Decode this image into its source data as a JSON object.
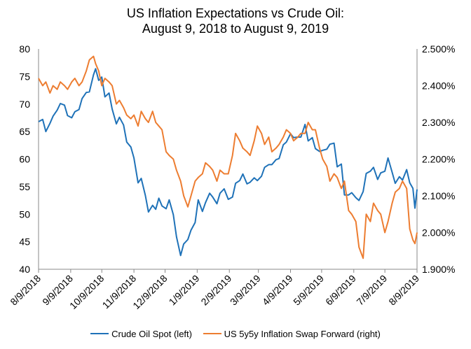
{
  "chart_data": {
    "type": "line",
    "title_line1": "US Inflation Expectations vs Crude Oil:",
    "title_line2": "August 9, 2018 to August 9, 2019",
    "x_ticks": [
      "8/9/2018",
      "9/9/2018",
      "10/9/2018",
      "11/9/2018",
      "12/9/2018",
      "1/9/2019",
      "2/9/2019",
      "3/9/2019",
      "4/9/2019",
      "5/9/2019",
      "6/9/2019",
      "7/9/2019",
      "8/9/2019"
    ],
    "x_range": [
      "2018-08-09",
      "2019-08-09"
    ],
    "y_left": {
      "ylim": [
        40,
        80
      ],
      "ticks": [
        "40",
        "45",
        "50",
        "55",
        "60",
        "65",
        "70",
        "75",
        "80"
      ]
    },
    "y_right": {
      "ylim": [
        1.9,
        2.5
      ],
      "ticks": [
        "1.900%",
        "2.000%",
        "2.100%",
        "2.200%",
        "2.300%",
        "2.400%",
        "2.500%"
      ]
    },
    "grid": false,
    "legend_position": "bottom",
    "series": [
      {
        "name": "Crude Oil Spot (left)",
        "axis": "left",
        "color": "#1f72b8",
        "points": [
          [
            "2018-08-09",
            66.8
          ],
          [
            "2018-08-13",
            67.2
          ],
          [
            "2018-08-16",
            65.0
          ],
          [
            "2018-08-20",
            66.5
          ],
          [
            "2018-08-23",
            67.8
          ],
          [
            "2018-08-27",
            68.9
          ],
          [
            "2018-08-30",
            70.1
          ],
          [
            "2018-09-03",
            69.8
          ],
          [
            "2018-09-06",
            67.9
          ],
          [
            "2018-09-10",
            67.5
          ],
          [
            "2018-09-13",
            68.6
          ],
          [
            "2018-09-17",
            69.0
          ],
          [
            "2018-09-20",
            71.0
          ],
          [
            "2018-09-24",
            72.1
          ],
          [
            "2018-09-27",
            72.2
          ],
          [
            "2018-10-01",
            75.3
          ],
          [
            "2018-10-03",
            76.4
          ],
          [
            "2018-10-06",
            74.3
          ],
          [
            "2018-10-09",
            74.9
          ],
          [
            "2018-10-12",
            71.3
          ],
          [
            "2018-10-16",
            72.0
          ],
          [
            "2018-10-19",
            69.1
          ],
          [
            "2018-10-23",
            66.4
          ],
          [
            "2018-10-26",
            67.6
          ],
          [
            "2018-10-30",
            66.2
          ],
          [
            "2018-11-02",
            63.1
          ],
          [
            "2018-11-06",
            62.2
          ],
          [
            "2018-11-09",
            60.2
          ],
          [
            "2018-11-13",
            55.7
          ],
          [
            "2018-11-16",
            56.5
          ],
          [
            "2018-11-20",
            53.4
          ],
          [
            "2018-11-23",
            50.4
          ],
          [
            "2018-11-27",
            51.6
          ],
          [
            "2018-11-30",
            50.9
          ],
          [
            "2018-12-03",
            52.9
          ],
          [
            "2018-12-06",
            51.5
          ],
          [
            "2018-12-10",
            51.0
          ],
          [
            "2018-12-13",
            52.6
          ],
          [
            "2018-12-17",
            49.9
          ],
          [
            "2018-12-20",
            45.9
          ],
          [
            "2018-12-24",
            42.5
          ],
          [
            "2018-12-27",
            44.6
          ],
          [
            "2018-12-31",
            45.4
          ],
          [
            "2019-01-03",
            47.1
          ],
          [
            "2019-01-07",
            48.5
          ],
          [
            "2019-01-10",
            52.6
          ],
          [
            "2019-01-14",
            50.5
          ],
          [
            "2019-01-17",
            52.1
          ],
          [
            "2019-01-21",
            53.8
          ],
          [
            "2019-01-24",
            53.1
          ],
          [
            "2019-01-28",
            51.9
          ],
          [
            "2019-01-31",
            53.8
          ],
          [
            "2019-02-04",
            54.6
          ],
          [
            "2019-02-08",
            52.7
          ],
          [
            "2019-02-12",
            53.1
          ],
          [
            "2019-02-15",
            55.6
          ],
          [
            "2019-02-19",
            56.1
          ],
          [
            "2019-02-22",
            57.3
          ],
          [
            "2019-02-26",
            55.5
          ],
          [
            "2019-03-01",
            55.8
          ],
          [
            "2019-03-05",
            56.6
          ],
          [
            "2019-03-08",
            56.1
          ],
          [
            "2019-03-12",
            56.9
          ],
          [
            "2019-03-15",
            58.5
          ],
          [
            "2019-03-19",
            59.0
          ],
          [
            "2019-03-22",
            59.0
          ],
          [
            "2019-03-26",
            59.9
          ],
          [
            "2019-03-29",
            60.1
          ],
          [
            "2019-04-02",
            62.6
          ],
          [
            "2019-04-05",
            63.1
          ],
          [
            "2019-04-09",
            64.6
          ],
          [
            "2019-04-12",
            63.9
          ],
          [
            "2019-04-16",
            64.0
          ],
          [
            "2019-04-19",
            64.0
          ],
          [
            "2019-04-23",
            66.3
          ],
          [
            "2019-04-26",
            63.3
          ],
          [
            "2019-04-30",
            63.9
          ],
          [
            "2019-05-03",
            61.9
          ],
          [
            "2019-05-07",
            61.4
          ],
          [
            "2019-05-10",
            61.6
          ],
          [
            "2019-05-14",
            61.8
          ],
          [
            "2019-05-17",
            62.7
          ],
          [
            "2019-05-21",
            62.9
          ],
          [
            "2019-05-24",
            58.6
          ],
          [
            "2019-05-28",
            59.1
          ],
          [
            "2019-05-31",
            53.5
          ],
          [
            "2019-06-04",
            53.5
          ],
          [
            "2019-06-07",
            53.9
          ],
          [
            "2019-06-11",
            53.0
          ],
          [
            "2019-06-14",
            52.5
          ],
          [
            "2019-06-18",
            54.1
          ],
          [
            "2019-06-21",
            57.4
          ],
          [
            "2019-06-25",
            57.8
          ],
          [
            "2019-06-28",
            58.5
          ],
          [
            "2019-07-02",
            56.3
          ],
          [
            "2019-07-05",
            57.5
          ],
          [
            "2019-07-09",
            57.8
          ],
          [
            "2019-07-12",
            60.2
          ],
          [
            "2019-07-16",
            57.6
          ],
          [
            "2019-07-19",
            55.6
          ],
          [
            "2019-07-23",
            56.8
          ],
          [
            "2019-07-26",
            56.2
          ],
          [
            "2019-07-30",
            58.1
          ],
          [
            "2019-08-02",
            55.7
          ],
          [
            "2019-08-05",
            54.7
          ],
          [
            "2019-08-07",
            51.1
          ],
          [
            "2019-08-09",
            54.5
          ]
        ]
      },
      {
        "name": "US 5y5y Inflation Swap Forward (right)",
        "axis": "right",
        "color": "#ed7d31",
        "points": [
          [
            "2018-08-09",
            2.42
          ],
          [
            "2018-08-13",
            2.4
          ],
          [
            "2018-08-16",
            2.41
          ],
          [
            "2018-08-20",
            2.38
          ],
          [
            "2018-08-23",
            2.4
          ],
          [
            "2018-08-27",
            2.39
          ],
          [
            "2018-08-30",
            2.41
          ],
          [
            "2018-09-03",
            2.4
          ],
          [
            "2018-09-06",
            2.39
          ],
          [
            "2018-09-10",
            2.41
          ],
          [
            "2018-09-13",
            2.42
          ],
          [
            "2018-09-17",
            2.4
          ],
          [
            "2018-09-20",
            2.41
          ],
          [
            "2018-09-24",
            2.44
          ],
          [
            "2018-09-27",
            2.47
          ],
          [
            "2018-10-01",
            2.48
          ],
          [
            "2018-10-03",
            2.46
          ],
          [
            "2018-10-06",
            2.44
          ],
          [
            "2018-10-09",
            2.4
          ],
          [
            "2018-10-12",
            2.42
          ],
          [
            "2018-10-16",
            2.41
          ],
          [
            "2018-10-19",
            2.4
          ],
          [
            "2018-10-23",
            2.35
          ],
          [
            "2018-10-26",
            2.36
          ],
          [
            "2018-10-30",
            2.34
          ],
          [
            "2018-11-02",
            2.32
          ],
          [
            "2018-11-06",
            2.31
          ],
          [
            "2018-11-09",
            2.32
          ],
          [
            "2018-11-13",
            2.29
          ],
          [
            "2018-11-16",
            2.33
          ],
          [
            "2018-11-20",
            2.31
          ],
          [
            "2018-11-23",
            2.3
          ],
          [
            "2018-11-27",
            2.33
          ],
          [
            "2018-11-30",
            2.3
          ],
          [
            "2018-12-03",
            2.29
          ],
          [
            "2018-12-06",
            2.28
          ],
          [
            "2018-12-10",
            2.22
          ],
          [
            "2018-12-13",
            2.21
          ],
          [
            "2018-12-17",
            2.2
          ],
          [
            "2018-12-20",
            2.17
          ],
          [
            "2018-12-24",
            2.14
          ],
          [
            "2018-12-27",
            2.1
          ],
          [
            "2018-12-31",
            2.07
          ],
          [
            "2019-01-03",
            2.1
          ],
          [
            "2019-01-07",
            2.14
          ],
          [
            "2019-01-10",
            2.15
          ],
          [
            "2019-01-14",
            2.16
          ],
          [
            "2019-01-17",
            2.19
          ],
          [
            "2019-01-21",
            2.18
          ],
          [
            "2019-01-24",
            2.17
          ],
          [
            "2019-01-28",
            2.14
          ],
          [
            "2019-01-31",
            2.17
          ],
          [
            "2019-02-04",
            2.16
          ],
          [
            "2019-02-08",
            2.16
          ],
          [
            "2019-02-12",
            2.21
          ],
          [
            "2019-02-15",
            2.27
          ],
          [
            "2019-02-19",
            2.25
          ],
          [
            "2019-02-22",
            2.23
          ],
          [
            "2019-02-26",
            2.22
          ],
          [
            "2019-03-01",
            2.21
          ],
          [
            "2019-03-05",
            2.25
          ],
          [
            "2019-03-08",
            2.29
          ],
          [
            "2019-03-12",
            2.27
          ],
          [
            "2019-03-15",
            2.24
          ],
          [
            "2019-03-19",
            2.26
          ],
          [
            "2019-03-22",
            2.22
          ],
          [
            "2019-03-26",
            2.23
          ],
          [
            "2019-03-29",
            2.24
          ],
          [
            "2019-04-02",
            2.26
          ],
          [
            "2019-04-05",
            2.28
          ],
          [
            "2019-04-09",
            2.27
          ],
          [
            "2019-04-12",
            2.25
          ],
          [
            "2019-04-16",
            2.26
          ],
          [
            "2019-04-19",
            2.27
          ],
          [
            "2019-04-23",
            2.27
          ],
          [
            "2019-04-26",
            2.3
          ],
          [
            "2019-04-30",
            2.28
          ],
          [
            "2019-05-03",
            2.28
          ],
          [
            "2019-05-07",
            2.23
          ],
          [
            "2019-05-10",
            2.2
          ],
          [
            "2019-05-14",
            2.18
          ],
          [
            "2019-05-17",
            2.14
          ],
          [
            "2019-05-21",
            2.16
          ],
          [
            "2019-05-24",
            2.15
          ],
          [
            "2019-05-28",
            2.12
          ],
          [
            "2019-05-31",
            2.14
          ],
          [
            "2019-06-04",
            2.06
          ],
          [
            "2019-06-07",
            2.05
          ],
          [
            "2019-06-11",
            2.03
          ],
          [
            "2019-06-14",
            1.96
          ],
          [
            "2019-06-18",
            1.93
          ],
          [
            "2019-06-21",
            2.05
          ],
          [
            "2019-06-25",
            2.03
          ],
          [
            "2019-06-28",
            2.08
          ],
          [
            "2019-07-02",
            2.06
          ],
          [
            "2019-07-05",
            2.05
          ],
          [
            "2019-07-09",
            2.0
          ],
          [
            "2019-07-12",
            2.03
          ],
          [
            "2019-07-16",
            2.08
          ],
          [
            "2019-07-19",
            2.11
          ],
          [
            "2019-07-23",
            2.12
          ],
          [
            "2019-07-26",
            2.14
          ],
          [
            "2019-07-30",
            2.12
          ],
          [
            "2019-08-02",
            2.01
          ],
          [
            "2019-08-05",
            1.98
          ],
          [
            "2019-08-07",
            1.97
          ],
          [
            "2019-08-09",
            2.0
          ]
        ]
      }
    ]
  }
}
